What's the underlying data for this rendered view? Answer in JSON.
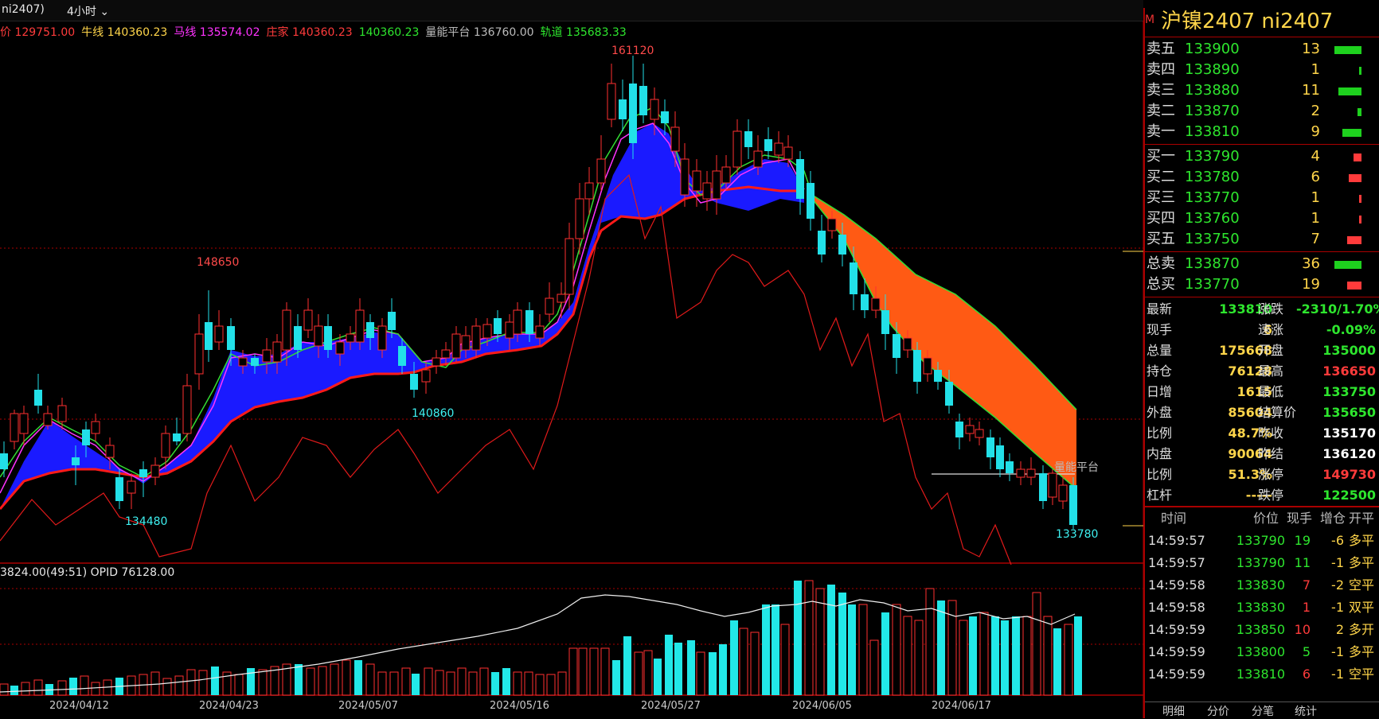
{
  "topbar": {
    "symbol": "ni2407)",
    "period": "4小时"
  },
  "legend": [
    {
      "label": "价 129751.00",
      "color": "#ff3b3b"
    },
    {
      "label": "牛线 140360.23",
      "color": "#ffd54a"
    },
    {
      "label": "马线 135574.02",
      "color": "#ff33ff"
    },
    {
      "label": "庄家 140360.23",
      "color": "#ff3b3b"
    },
    {
      "label": "140360.23",
      "color": "#2ee62e"
    },
    {
      "label": "量能平台 136760.00",
      "color": "#bbbbbb"
    },
    {
      "label": "轨道 135683.33",
      "color": "#2ee62e"
    }
  ],
  "annotations": {
    "high": "161120",
    "peak2": "148650",
    "low1": "134480",
    "low2": "140860",
    "last": "133780",
    "platform": "量能平台"
  },
  "indicator_label": "3824.00(49:51)  OPID 76128.00",
  "dates": [
    "2024/04/12",
    "2024/04/23",
    "2024/05/07",
    "2024/05/16",
    "2024/05/27",
    "2024/06/05",
    "2024/06/17"
  ],
  "panel": {
    "marker": "M",
    "title": "沪镍2407  ni2407",
    "asks": [
      {
        "label": "卖五",
        "price": "133900",
        "qty": "13"
      },
      {
        "label": "卖四",
        "price": "133890",
        "qty": "1"
      },
      {
        "label": "卖三",
        "price": "133880",
        "qty": "11"
      },
      {
        "label": "卖二",
        "price": "133870",
        "qty": "2"
      },
      {
        "label": "卖一",
        "price": "133810",
        "qty": "9"
      }
    ],
    "bids": [
      {
        "label": "买一",
        "price": "133790",
        "qty": "4"
      },
      {
        "label": "买二",
        "price": "133780",
        "qty": "6"
      },
      {
        "label": "买三",
        "price": "133770",
        "qty": "1"
      },
      {
        "label": "买四",
        "price": "133760",
        "qty": "1"
      },
      {
        "label": "买五",
        "price": "133750",
        "qty": "7"
      }
    ],
    "totals": [
      {
        "label": "总卖",
        "price": "133870",
        "qty": "36"
      },
      {
        "label": "总买",
        "price": "133770",
        "qty": "19"
      }
    ],
    "stats": [
      {
        "l1": "最新",
        "v1": "133810",
        "c1": "green",
        "l2": "涨跌",
        "v2": "-2310/1.70%",
        "c2": "green"
      },
      {
        "l1": "现手",
        "v1": "6",
        "c1": "yellow",
        "l2": "速涨",
        "v2": "-0.09%",
        "c2": "green"
      },
      {
        "l1": "总量",
        "v1": "175668",
        "c1": "yellow",
        "l2": "开盘",
        "v2": "135000",
        "c2": "green"
      },
      {
        "l1": "持仓",
        "v1": "76128",
        "c1": "yellow",
        "l2": "最高",
        "v2": "136650",
        "c2": "red"
      },
      {
        "l1": "日增",
        "v1": "1615",
        "c1": "yellow",
        "l2": "最低",
        "v2": "133750",
        "c2": "green"
      },
      {
        "l1": "外盘",
        "v1": "85604",
        "c1": "yellow",
        "l2": "结算价",
        "v2": "135650",
        "c2": "green"
      },
      {
        "l1": "比例",
        "v1": "48.7%",
        "c1": "yellow",
        "l2": "昨收",
        "v2": "135170",
        "c2": "white"
      },
      {
        "l1": "内盘",
        "v1": "90064",
        "c1": "yellow",
        "l2": "昨结",
        "v2": "136120",
        "c2": "white"
      },
      {
        "l1": "比例",
        "v1": "51.3%",
        "c1": "yellow",
        "l2": "涨停",
        "v2": "149730",
        "c2": "red"
      },
      {
        "l1": "杠杆",
        "v1": "-----",
        "c1": "yellow",
        "l2": "跌停",
        "v2": "122500",
        "c2": "green"
      }
    ],
    "trades_head": {
      "time": "时间",
      "price": "价位",
      "qty": "现手",
      "inc": "增仓",
      "type": "开平"
    },
    "trades": [
      {
        "time": "14:59:57",
        "price": "133790",
        "qty": "19",
        "inc": "-6",
        "type": "多平",
        "qc": "green"
      },
      {
        "time": "14:59:57",
        "price": "133790",
        "qty": "11",
        "inc": "-1",
        "type": "多平",
        "qc": "green"
      },
      {
        "time": "14:59:58",
        "price": "133830",
        "qty": "7",
        "inc": "-2",
        "type": "空平",
        "qc": "red"
      },
      {
        "time": "14:59:58",
        "price": "133830",
        "qty": "1",
        "inc": "-1",
        "type": "双平",
        "qc": "red"
      },
      {
        "time": "14:59:59",
        "price": "133850",
        "qty": "10",
        "inc": "2",
        "type": "多开",
        "qc": "red"
      },
      {
        "time": "14:59:59",
        "price": "133800",
        "qty": "5",
        "inc": "-1",
        "type": "多平",
        "qc": "green"
      },
      {
        "time": "14:59:59",
        "price": "133810",
        "qty": "6",
        "inc": "-1",
        "type": "空平",
        "qc": "red"
      }
    ],
    "tabs": [
      "明细",
      "分价",
      "分笔",
      "统计"
    ]
  },
  "chart_data": {
    "type": "candlestick",
    "categories": [
      "2024/04/12",
      "2024/04/23",
      "2024/05/07",
      "2024/05/16",
      "2024/05/27",
      "2024/06/05",
      "2024/06/17"
    ],
    "price_annotations": {
      "max": 161120,
      "local_high": 148650,
      "min1": 134480,
      "min2": 140860,
      "last": 133780
    },
    "ylim": [
      131000,
      164000
    ]
  }
}
